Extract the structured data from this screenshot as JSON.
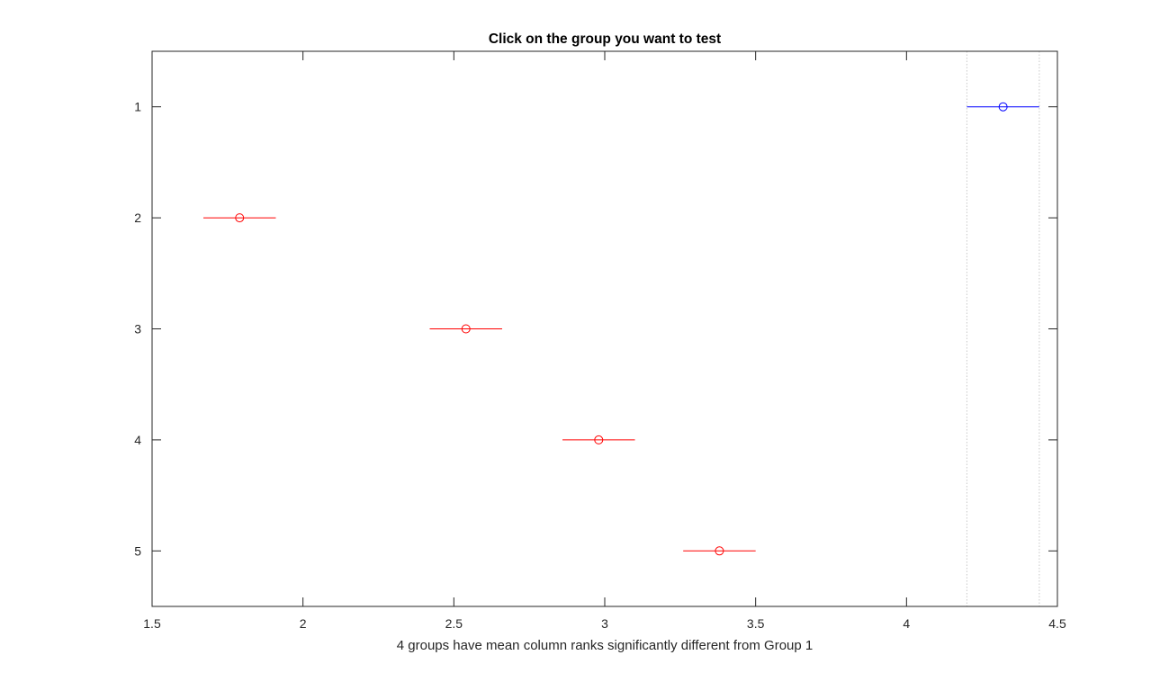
{
  "chart_data": {
    "type": "scatter",
    "title": "Click on the group you want to test",
    "xlabel": "4 groups have mean column ranks significantly different from Group 1",
    "ylabel": "",
    "xlim": [
      1.5,
      4.5
    ],
    "ylim": [
      0.5,
      5.5
    ],
    "y_reversed": true,
    "grid": false,
    "xticks": [
      1.5,
      2,
      2.5,
      3,
      3.5,
      4,
      4.5
    ],
    "xtick_labels": [
      "1.5",
      "2",
      "2.5",
      "3",
      "3.5",
      "4",
      "4.5"
    ],
    "yticks": [
      1,
      2,
      3,
      4,
      5
    ],
    "ytick_labels": [
      "1",
      "2",
      "3",
      "4",
      "5"
    ],
    "selected_group": 1,
    "selected_color": "#0000ff",
    "significant_color": "#ff0000",
    "comparison_lines_color": "#c8c8c8",
    "comparison_interval": [
      4.2,
      4.44
    ],
    "groups": [
      {
        "group": 1,
        "mean": 4.32,
        "lower": 4.2,
        "upper": 4.44,
        "selected": true
      },
      {
        "group": 2,
        "mean": 1.79,
        "lower": 1.67,
        "upper": 1.91,
        "selected": false
      },
      {
        "group": 3,
        "mean": 2.54,
        "lower": 2.42,
        "upper": 2.66,
        "selected": false
      },
      {
        "group": 4,
        "mean": 2.98,
        "lower": 2.86,
        "upper": 3.1,
        "selected": false
      },
      {
        "group": 5,
        "mean": 3.38,
        "lower": 3.26,
        "upper": 3.5,
        "selected": false
      }
    ]
  }
}
